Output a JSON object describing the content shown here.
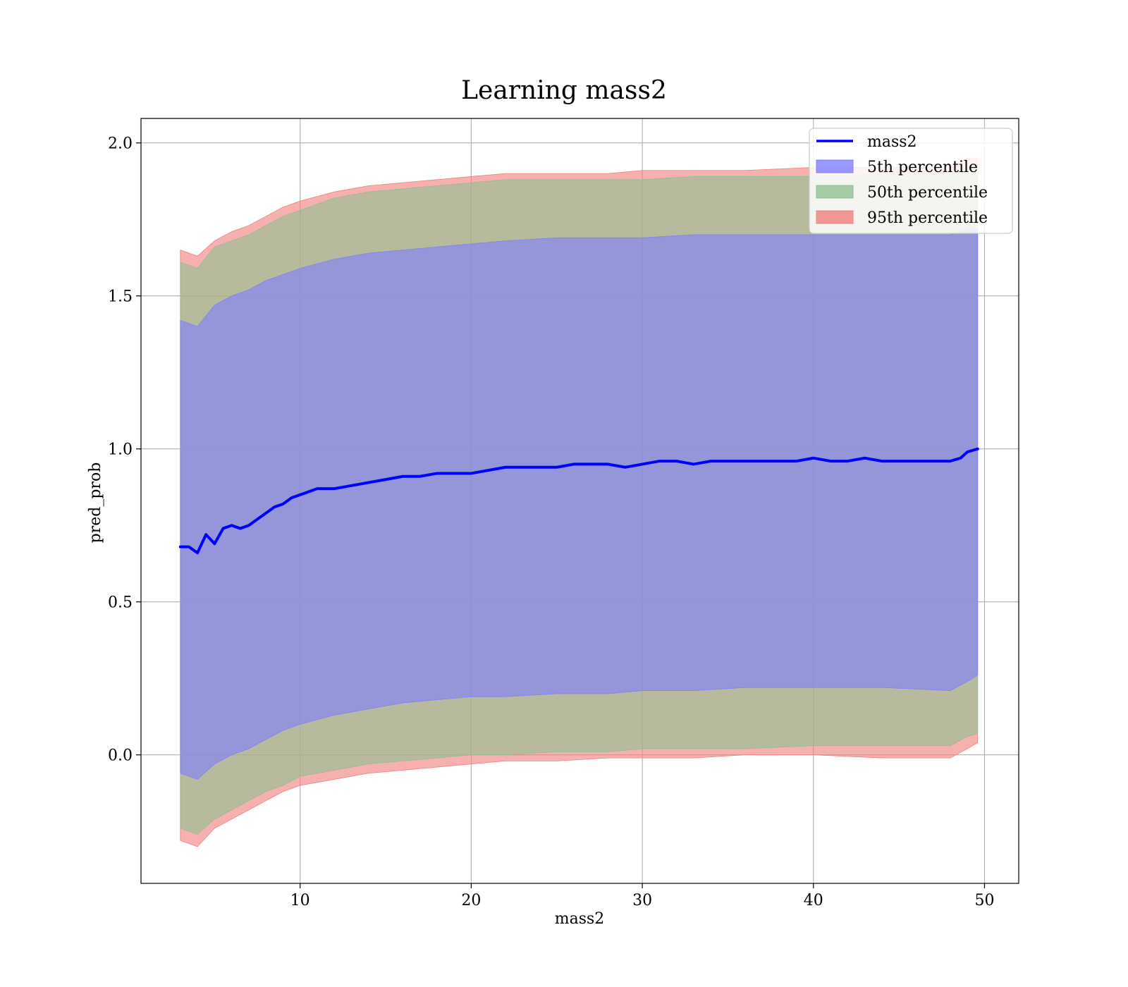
{
  "chart_data": {
    "type": "area",
    "title": "Learning mass2",
    "xlabel": "mass2",
    "ylabel": "pred_prob",
    "xlim": [
      0.7,
      52.0
    ],
    "ylim": [
      -0.42,
      2.08
    ],
    "xticks": [
      10,
      20,
      30,
      40,
      50
    ],
    "yticks": [
      0.0,
      0.5,
      1.0,
      1.5,
      2.0
    ],
    "xtick_labels": [
      "10",
      "20",
      "30",
      "40",
      "50"
    ],
    "ytick_labels": [
      "0.0",
      "0.5",
      "1.0",
      "1.5",
      "2.0"
    ],
    "grid": true,
    "legend_position": "top-right",
    "legend": [
      "mass2",
      "5th percentile",
      "50th percentile",
      "95th percentile"
    ],
    "line": {
      "name": "mass2",
      "color": "#0000ff",
      "x": [
        3.0,
        3.5,
        4.0,
        4.5,
        5.0,
        5.5,
        6.0,
        6.5,
        7.0,
        7.5,
        8.0,
        8.5,
        9.0,
        9.5,
        10.0,
        11.0,
        12.0,
        13.0,
        14.0,
        15.0,
        16.0,
        17.0,
        18.0,
        19.0,
        20.0,
        21.0,
        22.0,
        23.0,
        24.0,
        25.0,
        26.0,
        27.0,
        28.0,
        29.0,
        30.0,
        31.0,
        32.0,
        33.0,
        34.0,
        35.0,
        36.0,
        37.0,
        38.0,
        39.0,
        40.0,
        41.0,
        42.0,
        43.0,
        44.0,
        45.0,
        46.0,
        47.0,
        48.0,
        48.6,
        49.0,
        49.6
      ],
      "y": [
        0.68,
        0.68,
        0.66,
        0.72,
        0.69,
        0.74,
        0.75,
        0.74,
        0.75,
        0.77,
        0.79,
        0.81,
        0.82,
        0.84,
        0.85,
        0.87,
        0.87,
        0.88,
        0.89,
        0.9,
        0.91,
        0.91,
        0.92,
        0.92,
        0.92,
        0.93,
        0.94,
        0.94,
        0.94,
        0.94,
        0.95,
        0.95,
        0.95,
        0.94,
        0.95,
        0.96,
        0.96,
        0.95,
        0.96,
        0.96,
        0.96,
        0.96,
        0.96,
        0.96,
        0.97,
        0.96,
        0.96,
        0.97,
        0.96,
        0.96,
        0.96,
        0.96,
        0.96,
        0.97,
        0.99,
        1.0
      ]
    },
    "bands": [
      {
        "name": "95th percentile",
        "color": "#f08080",
        "x": [
          3.0,
          4.0,
          5.0,
          6.0,
          7.0,
          8.0,
          9.0,
          10.0,
          12.0,
          14.0,
          16.0,
          18.0,
          20.0,
          22.0,
          25.0,
          28.0,
          30.0,
          33.0,
          36.0,
          40.0,
          44.0,
          48.0,
          49.0,
          49.6
        ],
        "lower": [
          -0.28,
          -0.3,
          -0.24,
          -0.21,
          -0.18,
          -0.15,
          -0.12,
          -0.1,
          -0.08,
          -0.06,
          -0.05,
          -0.04,
          -0.03,
          -0.02,
          -0.02,
          -0.01,
          -0.01,
          -0.01,
          0.0,
          0.0,
          -0.01,
          -0.01,
          0.02,
          0.04
        ],
        "upper": [
          1.65,
          1.63,
          1.68,
          1.71,
          1.73,
          1.76,
          1.79,
          1.81,
          1.84,
          1.86,
          1.87,
          1.88,
          1.89,
          1.9,
          1.9,
          1.9,
          1.91,
          1.91,
          1.91,
          1.92,
          1.92,
          1.92,
          1.95,
          1.95
        ]
      },
      {
        "name": "50th percentile",
        "color": "#90c090",
        "x": [
          3.0,
          4.0,
          5.0,
          6.0,
          7.0,
          8.0,
          9.0,
          10.0,
          12.0,
          14.0,
          16.0,
          18.0,
          20.0,
          22.0,
          25.0,
          28.0,
          30.0,
          33.0,
          36.0,
          40.0,
          44.0,
          48.0,
          49.0,
          49.6
        ],
        "lower": [
          -0.24,
          -0.26,
          -0.21,
          -0.18,
          -0.15,
          -0.12,
          -0.1,
          -0.07,
          -0.05,
          -0.03,
          -0.02,
          -0.01,
          0.0,
          0.0,
          0.01,
          0.01,
          0.02,
          0.02,
          0.02,
          0.03,
          0.03,
          0.03,
          0.06,
          0.07
        ],
        "upper": [
          1.61,
          1.59,
          1.66,
          1.68,
          1.7,
          1.73,
          1.76,
          1.78,
          1.82,
          1.84,
          1.85,
          1.86,
          1.87,
          1.88,
          1.88,
          1.88,
          1.88,
          1.89,
          1.89,
          1.89,
          1.9,
          1.9,
          1.92,
          1.92
        ]
      },
      {
        "name": "5th percentile",
        "color": "#8080ff",
        "x": [
          3.0,
          4.0,
          5.0,
          6.0,
          7.0,
          8.0,
          9.0,
          10.0,
          12.0,
          14.0,
          16.0,
          18.0,
          20.0,
          22.0,
          25.0,
          28.0,
          30.0,
          33.0,
          36.0,
          40.0,
          44.0,
          48.0,
          49.0,
          49.6
        ],
        "lower": [
          -0.06,
          -0.08,
          -0.03,
          0.0,
          0.02,
          0.05,
          0.08,
          0.1,
          0.13,
          0.15,
          0.17,
          0.18,
          0.19,
          0.19,
          0.2,
          0.2,
          0.21,
          0.21,
          0.22,
          0.22,
          0.22,
          0.21,
          0.24,
          0.26
        ],
        "upper": [
          1.42,
          1.4,
          1.47,
          1.5,
          1.52,
          1.55,
          1.57,
          1.59,
          1.62,
          1.64,
          1.65,
          1.66,
          1.67,
          1.68,
          1.69,
          1.69,
          1.69,
          1.7,
          1.7,
          1.7,
          1.7,
          1.7,
          1.72,
          1.72
        ]
      }
    ],
    "legend_colors": {
      "line": "#0000ff",
      "p5": "#8080ff",
      "p50": "#90c090",
      "p95": "#f08080"
    }
  }
}
